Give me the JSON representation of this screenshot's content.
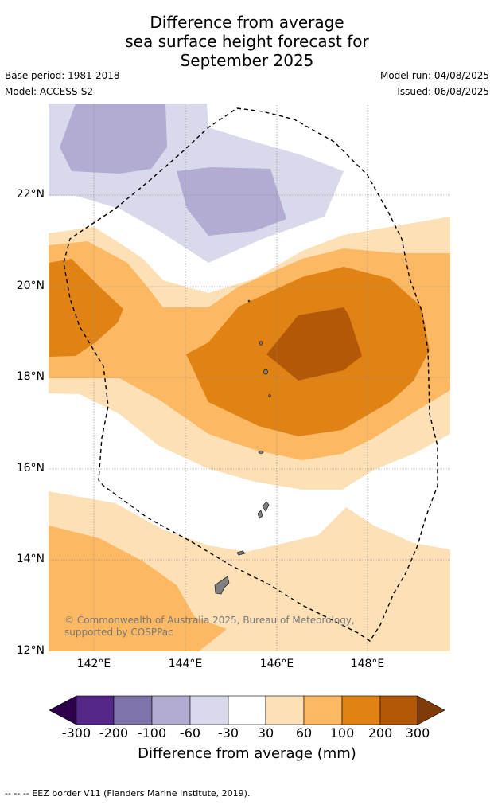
{
  "header": {
    "title_lines": [
      "Difference from average",
      "sea surface height forecast for",
      "September 2025"
    ],
    "base_period": "Base period: 1981-2018",
    "model": "Model: ACCESS-S2",
    "model_run": "Model run: 04/08/2025",
    "issued": "Issued: 06/08/2025"
  },
  "map": {
    "lat_labels": [
      "22°N",
      "20°N",
      "18°N",
      "16°N",
      "14°N",
      "12°N"
    ],
    "lon_labels": [
      "142°E",
      "144°E",
      "146°E",
      "148°E"
    ],
    "credit": "© Commonwealth of Australia 2025, Bureau of Meteorology, supported by COSPPac",
    "eez_border": "dashed",
    "land_color": "#808080"
  },
  "legend": {
    "tick_labels": [
      "-300",
      "-200",
      "-100",
      "-60",
      "-30",
      "30",
      "60",
      "100",
      "200",
      "300"
    ],
    "title": "Difference from average (mm)",
    "colors": [
      "#2d004b",
      "#542788",
      "#8073ac",
      "#b2abd2",
      "#d8daeb",
      "#ffffff",
      "#fee0b6",
      "#fdb863",
      "#e08214",
      "#b35806",
      "#7f3b08"
    ]
  },
  "footer": {
    "note": "--  --  -- EEZ border V11 (Flanders Marine Institute, 2019)."
  }
}
